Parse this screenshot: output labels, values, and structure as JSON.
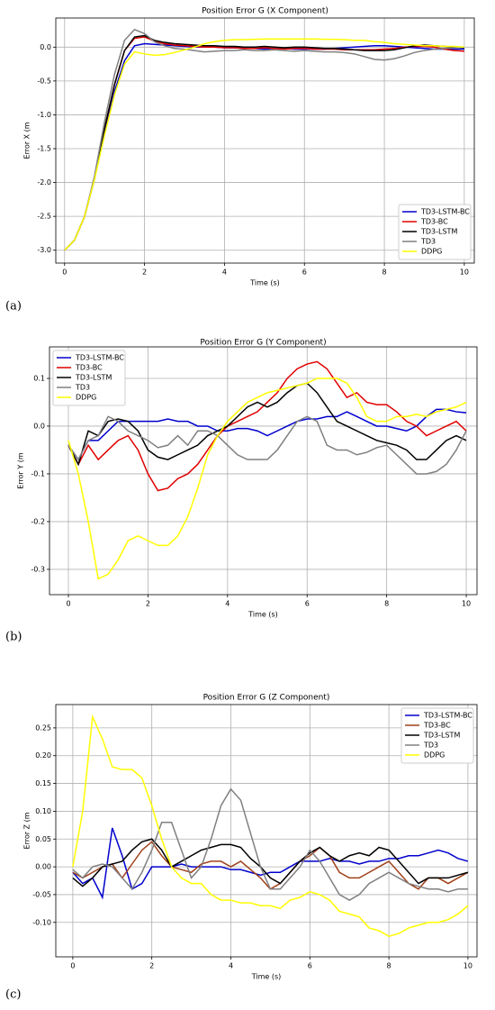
{
  "chart_data": [
    {
      "type": "line",
      "title": "Position Error G (X Component)",
      "xlabel": "Time (s)",
      "ylabel": "Error X (m",
      "panel_label": "(a)",
      "x": [
        0,
        0.25,
        0.5,
        0.75,
        1,
        1.25,
        1.5,
        1.75,
        2,
        2.25,
        2.5,
        2.75,
        3,
        3.25,
        3.5,
        3.75,
        4,
        4.25,
        4.5,
        4.75,
        5,
        5.25,
        5.5,
        5.75,
        6,
        6.25,
        6.5,
        6.75,
        7,
        7.25,
        7.5,
        7.75,
        8,
        8.25,
        8.5,
        8.75,
        9,
        9.25,
        9.5,
        9.75,
        10
      ],
      "xlim": [
        -0.22,
        10.25
      ],
      "ylim": [
        -3.19,
        0.43
      ],
      "xticks": [
        0,
        2,
        4,
        6,
        8,
        10
      ],
      "yticks": [
        {
          "value": 0,
          "label": "0.0"
        },
        -0.5,
        {
          "value": -1,
          "label": "-1.0"
        },
        -1.5,
        {
          "value": -2,
          "label": "-2.0"
        },
        -2.5,
        {
          "value": -3,
          "label": "-3.0"
        }
      ],
      "grid": true,
      "legend": "lower right",
      "series": [
        {
          "name": "TD3-LSTM-BC",
          "color": "#0000cd",
          "values": [
            -3.0,
            -2.85,
            -2.5,
            -1.95,
            -1.25,
            -0.65,
            -0.2,
            0.02,
            0.05,
            0.04,
            0.03,
            0.02,
            0.01,
            0.0,
            0.0,
            0.0,
            -0.01,
            -0.01,
            -0.02,
            -0.02,
            -0.03,
            -0.02,
            -0.02,
            -0.03,
            -0.03,
            -0.03,
            -0.03,
            -0.02,
            -0.01,
            0.0,
            0.01,
            0.02,
            0.02,
            0.01,
            0.0,
            -0.01,
            -0.02,
            -0.03,
            -0.03,
            -0.03,
            -0.03
          ]
        },
        {
          "name": "TD3-BC",
          "color": "#e00000",
          "values": [
            -3.0,
            -2.85,
            -2.5,
            -1.93,
            -1.2,
            -0.55,
            -0.05,
            0.13,
            0.15,
            0.09,
            0.05,
            0.03,
            0.02,
            0.01,
            0.0,
            0.0,
            -0.01,
            -0.01,
            -0.02,
            -0.02,
            -0.01,
            -0.02,
            -0.03,
            -0.02,
            -0.02,
            -0.03,
            -0.03,
            -0.03,
            -0.04,
            -0.04,
            -0.04,
            -0.04,
            -0.03,
            -0.02,
            0.0,
            0.01,
            0.01,
            0.0,
            -0.03,
            -0.05,
            -0.06
          ]
        },
        {
          "name": "TD3-LSTM",
          "color": "#000000",
          "values": [
            -3.0,
            -2.85,
            -2.5,
            -1.93,
            -1.2,
            -0.55,
            -0.05,
            0.15,
            0.17,
            0.1,
            0.07,
            0.05,
            0.04,
            0.03,
            0.02,
            0.02,
            0.01,
            0.01,
            0.0,
            0.0,
            0.01,
            0.0,
            -0.01,
            0.0,
            0.0,
            -0.01,
            -0.02,
            -0.02,
            -0.03,
            -0.04,
            -0.05,
            -0.05,
            -0.05,
            -0.04,
            -0.01,
            0.02,
            0.03,
            0.02,
            0.01,
            0.0,
            -0.01
          ]
        },
        {
          "name": "TD3",
          "color": "#808080",
          "values": [
            -3.0,
            -2.85,
            -2.5,
            -1.9,
            -1.1,
            -0.4,
            0.1,
            0.26,
            0.2,
            0.08,
            0.02,
            -0.02,
            -0.03,
            -0.05,
            -0.07,
            -0.06,
            -0.05,
            -0.05,
            -0.04,
            -0.05,
            -0.05,
            -0.04,
            -0.05,
            -0.06,
            -0.05,
            -0.06,
            -0.07,
            -0.07,
            -0.08,
            -0.1,
            -0.14,
            -0.18,
            -0.19,
            -0.17,
            -0.13,
            -0.08,
            -0.05,
            -0.03,
            -0.02,
            -0.01,
            0.0
          ]
        },
        {
          "name": "DDPG",
          "color": "#ffff00",
          "values": [
            -3.0,
            -2.85,
            -2.5,
            -1.95,
            -1.3,
            -0.7,
            -0.25,
            -0.07,
            -0.1,
            -0.12,
            -0.11,
            -0.08,
            -0.04,
            0.0,
            0.05,
            0.08,
            0.1,
            0.11,
            0.11,
            0.115,
            0.12,
            0.12,
            0.12,
            0.12,
            0.12,
            0.12,
            0.115,
            0.115,
            0.11,
            0.1,
            0.1,
            0.08,
            0.07,
            0.05,
            0.04,
            0.03,
            0.02,
            0.02,
            0.01,
            0.01,
            0.0
          ]
        }
      ]
    },
    {
      "type": "line",
      "title": "Position Error G (Y Component)",
      "xlabel": "Time (s)",
      "ylabel": "Error Y (m",
      "panel_label": "(b)",
      "x": [
        0,
        0.25,
        0.5,
        0.75,
        1,
        1.25,
        1.5,
        1.75,
        2,
        2.25,
        2.5,
        2.75,
        3,
        3.25,
        3.5,
        3.75,
        4,
        4.25,
        4.5,
        4.75,
        5,
        5.25,
        5.5,
        5.75,
        6,
        6.25,
        6.5,
        6.75,
        7,
        7.25,
        7.5,
        7.75,
        8,
        8.25,
        8.5,
        8.75,
        9,
        9.25,
        9.5,
        9.75,
        10
      ],
      "xlim": [
        -0.475,
        10.27
      ],
      "ylim": [
        -0.353,
        0.166
      ],
      "xticks": [
        0,
        2,
        4,
        6,
        8,
        10
      ],
      "yticks": [
        0.1,
        {
          "value": 0,
          "label": "0.0"
        },
        -0.1,
        -0.2,
        -0.3
      ],
      "grid": true,
      "legend": "upper left",
      "series": [
        {
          "name": "TD3-LSTM-BC",
          "color": "#0000cd",
          "values": [
            -0.04,
            -0.07,
            -0.03,
            -0.03,
            -0.01,
            0.01,
            0.01,
            0.01,
            0.01,
            0.01,
            0.015,
            0.01,
            0.01,
            0.0,
            0.0,
            -0.01,
            -0.01,
            -0.005,
            -0.005,
            -0.01,
            -0.02,
            -0.01,
            0.0,
            0.01,
            0.015,
            0.015,
            0.02,
            0.02,
            0.03,
            0.02,
            0.01,
            0.0,
            0.0,
            -0.005,
            -0.01,
            0.0,
            0.02,
            0.035,
            0.035,
            0.03,
            0.028
          ]
        },
        {
          "name": "TD3-BC",
          "color": "#e00000",
          "values": [
            -0.04,
            -0.08,
            -0.04,
            -0.07,
            -0.05,
            -0.03,
            -0.02,
            -0.05,
            -0.1,
            -0.135,
            -0.13,
            -0.11,
            -0.1,
            -0.08,
            -0.05,
            -0.02,
            0.0,
            0.01,
            0.02,
            0.03,
            0.05,
            0.07,
            0.1,
            0.12,
            0.13,
            0.135,
            0.12,
            0.09,
            0.06,
            0.07,
            0.05,
            0.045,
            0.045,
            0.03,
            0.01,
            0.0,
            -0.02,
            -0.01,
            0.0,
            0.01,
            -0.01
          ]
        },
        {
          "name": "TD3-LSTM",
          "color": "#000000",
          "values": [
            -0.04,
            -0.08,
            -0.01,
            -0.02,
            0.01,
            0.015,
            0.01,
            -0.01,
            -0.05,
            -0.065,
            -0.07,
            -0.06,
            -0.05,
            -0.04,
            -0.02,
            -0.01,
            0.0,
            0.02,
            0.04,
            0.05,
            0.04,
            0.05,
            0.07,
            0.085,
            0.09,
            0.07,
            0.04,
            0.01,
            0.0,
            -0.01,
            -0.02,
            -0.03,
            -0.035,
            -0.04,
            -0.05,
            -0.07,
            -0.07,
            -0.05,
            -0.03,
            -0.02,
            -0.03
          ]
        },
        {
          "name": "TD3",
          "color": "#808080",
          "values": [
            -0.04,
            -0.07,
            -0.03,
            -0.02,
            0.02,
            0.01,
            -0.01,
            -0.02,
            -0.03,
            -0.045,
            -0.04,
            -0.02,
            -0.04,
            -0.01,
            -0.01,
            -0.02,
            -0.04,
            -0.06,
            -0.07,
            -0.07,
            -0.07,
            -0.05,
            -0.02,
            0.01,
            0.02,
            0.01,
            -0.04,
            -0.05,
            -0.05,
            -0.06,
            -0.055,
            -0.045,
            -0.04,
            -0.06,
            -0.08,
            -0.1,
            -0.1,
            -0.095,
            -0.08,
            -0.05,
            -0.01
          ]
        },
        {
          "name": "DDPG",
          "color": "#ffff00",
          "values": [
            -0.03,
            -0.1,
            -0.2,
            -0.32,
            -0.31,
            -0.28,
            -0.24,
            -0.23,
            -0.24,
            -0.25,
            -0.25,
            -0.23,
            -0.19,
            -0.13,
            -0.06,
            -0.02,
            0.01,
            0.03,
            0.05,
            0.06,
            0.07,
            0.075,
            0.08,
            0.085,
            0.09,
            0.1,
            0.1,
            0.1,
            0.09,
            0.06,
            0.02,
            0.01,
            0.01,
            0.02,
            0.02,
            0.025,
            0.02,
            0.03,
            0.035,
            0.04,
            0.05
          ]
        }
      ]
    },
    {
      "type": "line",
      "title": "Position Error G (Z Component)",
      "xlabel": "Time (s)",
      "ylabel": "Error Z (m",
      "panel_label": "(c)",
      "x": [
        0,
        0.25,
        0.5,
        0.75,
        1,
        1.25,
        1.5,
        1.75,
        2,
        2.25,
        2.5,
        2.75,
        3,
        3.25,
        3.5,
        3.75,
        4,
        4.25,
        4.5,
        4.75,
        5,
        5.25,
        5.5,
        5.75,
        6,
        6.25,
        6.5,
        6.75,
        7,
        7.25,
        7.5,
        7.75,
        8,
        8.25,
        8.5,
        8.75,
        9,
        9.25,
        9.5,
        9.75,
        10
      ],
      "xlim": [
        -0.43,
        10.23
      ],
      "ylim": [
        -0.162,
        0.292
      ],
      "xticks": [
        0,
        2,
        4,
        6,
        8,
        10
      ],
      "yticks": [
        0.25,
        {
          "value": 0.2,
          "label": "0.20"
        },
        0.15,
        {
          "value": 0.1,
          "label": "0.10"
        },
        0.05,
        {
          "value": 0,
          "label": "0.00"
        },
        -0.05,
        {
          "value": -0.1,
          "label": "-0.10"
        }
      ],
      "grid": true,
      "legend": "upper right",
      "series": [
        {
          "name": "TD3-LSTM-BC",
          "color": "#0000cd",
          "values": [
            -0.01,
            -0.03,
            -0.02,
            -0.055,
            0.07,
            0.02,
            -0.04,
            -0.03,
            0.0,
            0.0,
            0.0,
            0.005,
            0.0,
            0.0,
            0.0,
            0.0,
            -0.005,
            -0.005,
            -0.01,
            -0.015,
            -0.01,
            -0.01,
            0.0,
            0.01,
            0.01,
            0.01,
            0.015,
            0.01,
            0.01,
            0.005,
            0.01,
            0.01,
            0.015,
            0.015,
            0.02,
            0.02,
            0.025,
            0.03,
            0.025,
            0.015,
            0.01
          ]
        },
        {
          "name": "TD3-BC",
          "color": "#a0401a",
          "values": [
            -0.01,
            -0.02,
            -0.01,
            0.0,
            0.005,
            -0.02,
            0.005,
            0.03,
            0.045,
            0.02,
            0.0,
            -0.005,
            -0.01,
            0.005,
            0.01,
            0.01,
            0.0,
            0.01,
            -0.005,
            -0.02,
            -0.04,
            -0.03,
            -0.01,
            0.01,
            0.02,
            0.035,
            0.02,
            -0.01,
            -0.02,
            -0.02,
            -0.01,
            0.0,
            0.01,
            -0.01,
            -0.03,
            -0.04,
            -0.02,
            -0.02,
            -0.03,
            -0.02,
            -0.01
          ]
        },
        {
          "name": "TD3-LSTM",
          "color": "#000000",
          "values": [
            -0.02,
            -0.035,
            -0.02,
            0.0,
            0.005,
            0.01,
            0.03,
            0.045,
            0.05,
            0.03,
            0.0,
            0.01,
            0.02,
            0.03,
            0.035,
            0.04,
            0.04,
            0.035,
            0.015,
            0.0,
            -0.02,
            -0.03,
            -0.01,
            0.01,
            0.025,
            0.035,
            0.02,
            0.01,
            0.02,
            0.025,
            0.02,
            0.035,
            0.03,
            0.01,
            -0.01,
            -0.03,
            -0.02,
            -0.02,
            -0.02,
            -0.015,
            -0.01
          ]
        },
        {
          "name": "TD3",
          "color": "#808080",
          "values": [
            -0.005,
            -0.02,
            0.0,
            0.005,
            0.0,
            -0.02,
            -0.04,
            -0.01,
            0.03,
            0.08,
            0.08,
            0.03,
            -0.02,
            0.0,
            0.05,
            0.11,
            0.14,
            0.12,
            0.06,
            0.0,
            -0.04,
            -0.04,
            -0.02,
            0.0,
            0.03,
            0.01,
            -0.02,
            -0.05,
            -0.06,
            -0.05,
            -0.03,
            -0.02,
            -0.01,
            -0.02,
            -0.03,
            -0.035,
            -0.04,
            -0.04,
            -0.045,
            -0.04,
            -0.04
          ]
        },
        {
          "name": "DDPG",
          "color": "#ffff00",
          "values": [
            0.0,
            0.1,
            0.27,
            0.23,
            0.18,
            0.175,
            0.175,
            0.16,
            0.11,
            0.05,
            0.0,
            -0.02,
            -0.03,
            -0.03,
            -0.05,
            -0.06,
            -0.06,
            -0.065,
            -0.065,
            -0.07,
            -0.07,
            -0.075,
            -0.06,
            -0.055,
            -0.045,
            -0.05,
            -0.06,
            -0.08,
            -0.085,
            -0.09,
            -0.11,
            -0.115,
            -0.125,
            -0.12,
            -0.11,
            -0.105,
            -0.1,
            -0.1,
            -0.095,
            -0.085,
            -0.07
          ]
        }
      ]
    }
  ]
}
